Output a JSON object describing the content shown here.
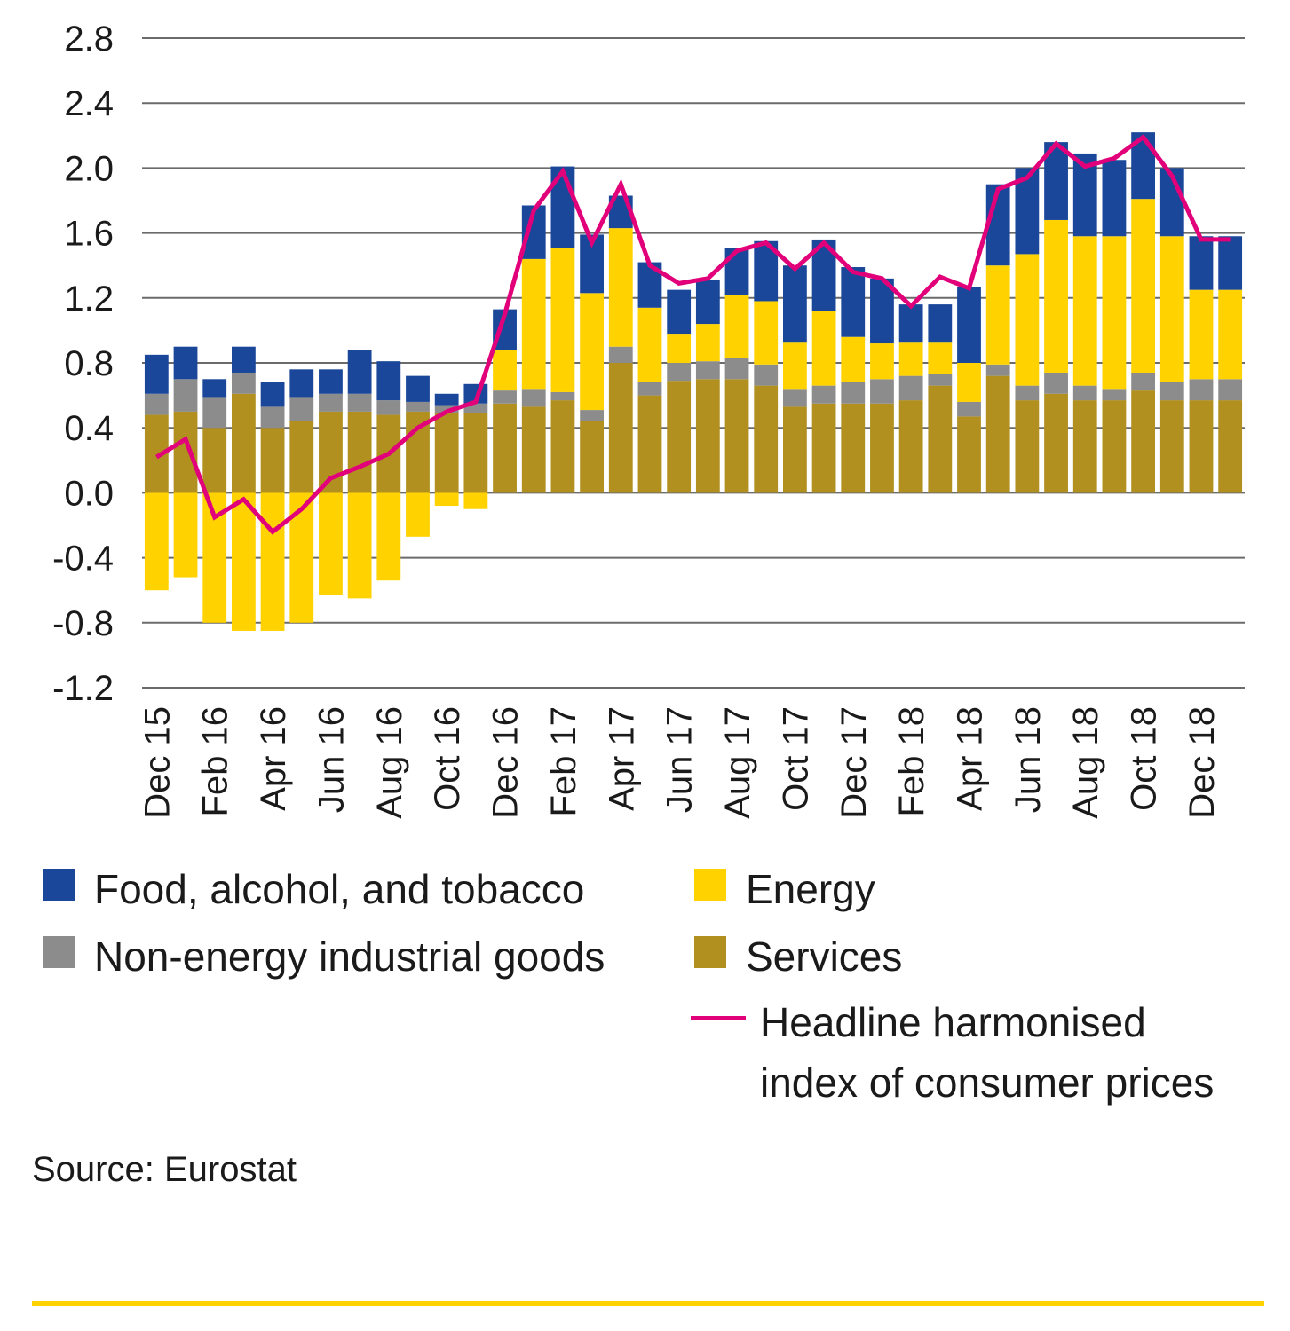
{
  "chart_data": {
    "type": "bar",
    "stacked": true,
    "categories": [
      "Dec 15",
      "Jan 16",
      "Feb 16",
      "Mar 16",
      "Apr 16",
      "May 16",
      "Jun 16",
      "Jul 16",
      "Aug 16",
      "Sep 16",
      "Oct 16",
      "Nov 16",
      "Dec 16",
      "Jan 17",
      "Feb 17",
      "Mar 17",
      "Apr 17",
      "May 17",
      "Jun 17",
      "Jul 17",
      "Aug 17",
      "Sep 17",
      "Oct 17",
      "Nov 17",
      "Dec 17",
      "Jan 18",
      "Feb 18",
      "Mar 18",
      "Apr 18",
      "May 18",
      "Jun 18",
      "Jul 18",
      "Aug 18",
      "Sep 18",
      "Oct 18",
      "Nov 18",
      "Dec 18",
      "Jan 19"
    ],
    "tick_labels": [
      "Dec 15",
      "",
      "Feb 16",
      "",
      "Apr 16",
      "",
      "Jun 16",
      "",
      "Aug 16",
      "",
      "Oct 16",
      "",
      "Dec 16",
      "",
      "Feb 17",
      "",
      "Apr 17",
      "",
      "Jun 17",
      "",
      "Aug 17",
      "",
      "Oct 17",
      "",
      "Dec 17",
      "",
      "Feb 18",
      "",
      "Apr 18",
      "",
      "Jun 18",
      "",
      "Aug 18",
      "",
      "Oct 18",
      "",
      "Dec 18",
      ""
    ],
    "ylim": [
      -1.2,
      2.8
    ],
    "yticks": [
      "2.8",
      "2.4",
      "2.0",
      "1.6",
      "1.2",
      "0.8",
      "0.4",
      "0.0",
      "-0.4",
      "-0.8",
      "-1.2"
    ],
    "ytick_values": [
      2.8,
      2.4,
      2.0,
      1.6,
      1.2,
      0.8,
      0.4,
      0.0,
      -0.4,
      -0.8,
      -1.2
    ],
    "grid": true,
    "legend_position": "bottom",
    "series": [
      {
        "name": "Services",
        "color": "#B19020",
        "values": [
          0.48,
          0.5,
          0.4,
          0.61,
          0.4,
          0.44,
          0.5,
          0.5,
          0.48,
          0.5,
          0.49,
          0.49,
          0.55,
          0.53,
          0.57,
          0.44,
          0.8,
          0.6,
          0.69,
          0.7,
          0.7,
          0.66,
          0.53,
          0.55,
          0.55,
          0.55,
          0.57,
          0.66,
          0.47,
          0.72,
          0.57,
          0.61,
          0.57,
          0.57,
          0.63,
          0.57,
          0.57,
          0.57
        ]
      },
      {
        "name": "Non-energy industrial goods",
        "color": "#8C8C8C",
        "values": [
          0.13,
          0.2,
          0.19,
          0.13,
          0.13,
          0.15,
          0.11,
          0.11,
          0.09,
          0.06,
          0.05,
          0.06,
          0.08,
          0.11,
          0.05,
          0.07,
          0.1,
          0.08,
          0.11,
          0.11,
          0.13,
          0.13,
          0.11,
          0.11,
          0.13,
          0.15,
          0.15,
          0.07,
          0.09,
          0.07,
          0.09,
          0.13,
          0.09,
          0.07,
          0.11,
          0.11,
          0.13,
          0.13
        ]
      },
      {
        "name": "Energy",
        "color": "#FFD200",
        "values": [
          -0.6,
          -0.52,
          -0.8,
          -0.85,
          -0.85,
          -0.8,
          -0.63,
          -0.65,
          -0.54,
          -0.27,
          -0.08,
          -0.1,
          0.25,
          0.8,
          0.89,
          0.72,
          0.73,
          0.46,
          0.18,
          0.23,
          0.39,
          0.39,
          0.29,
          0.46,
          0.28,
          0.22,
          0.21,
          0.2,
          0.24,
          0.61,
          0.81,
          0.94,
          0.92,
          0.94,
          1.07,
          0.9,
          0.55,
          0.55
        ]
      },
      {
        "name": "Food, alcohol, and tobacco",
        "color": "#1A479A",
        "values": [
          0.24,
          0.2,
          0.11,
          0.16,
          0.15,
          0.17,
          0.15,
          0.27,
          0.24,
          0.16,
          0.07,
          0.12,
          0.25,
          0.33,
          0.5,
          0.36,
          0.2,
          0.28,
          0.27,
          0.27,
          0.29,
          0.37,
          0.47,
          0.44,
          0.43,
          0.4,
          0.23,
          0.23,
          0.47,
          0.5,
          0.53,
          0.48,
          0.51,
          0.47,
          0.41,
          0.42,
          0.33,
          0.33
        ]
      }
    ],
    "line": {
      "name": "Headline harmonised index of consumer prices",
      "color": "#E2007A",
      "values": [
        0.22,
        0.33,
        -0.15,
        -0.04,
        -0.24,
        -0.1,
        0.09,
        0.16,
        0.24,
        0.4,
        0.5,
        0.56,
        1.1,
        1.74,
        1.98,
        1.54,
        1.9,
        1.4,
        1.29,
        1.32,
        1.49,
        1.54,
        1.38,
        1.54,
        1.36,
        1.32,
        1.15,
        1.33,
        1.26,
        1.87,
        1.94,
        2.15,
        2.01,
        2.06,
        2.19,
        1.95,
        1.56,
        1.56
      ]
    }
  },
  "legend": {
    "items": [
      {
        "label": "Food, alcohol, and tobacco",
        "color": "#1A479A"
      },
      {
        "label": "Energy",
        "color": "#FFD200"
      },
      {
        "label": "Non-energy industrial goods",
        "color": "#8C8C8C"
      },
      {
        "label": "Services",
        "color": "#B19020"
      }
    ],
    "line_label_1": "Headline harmonised",
    "line_label_2": "index of consumer prices",
    "line_color": "#E2007A"
  },
  "source": "Source: Eurostat",
  "footer_rule_color": "#FFD200"
}
